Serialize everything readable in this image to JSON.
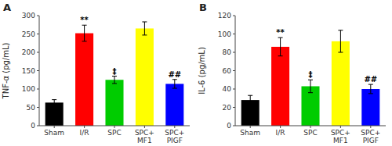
{
  "chart_data": [
    {
      "type": "bar",
      "title": "A",
      "ylabel": "TNF-α (pg/mL)",
      "categories": [
        "Sham",
        "I/R",
        "SPC",
        "SPC+\nMF1",
        "SPC+\nPIGF"
      ],
      "values": [
        63,
        252,
        125,
        265,
        114
      ],
      "errors": [
        8,
        22,
        10,
        18,
        12
      ],
      "colors": [
        "#000000",
        "#ff0000",
        "#00cc00",
        "#ffff00",
        "#0000ff"
      ],
      "ylim": [
        0,
        300
      ],
      "yticks": [
        0,
        50,
        100,
        150,
        200,
        250,
        300
      ],
      "annotations": [
        {
          "text": "**",
          "x": "I/R"
        },
        {
          "text": "‡",
          "x": "SPC"
        },
        {
          "text": "##",
          "x": "SPC+\nPIGF"
        }
      ],
      "grid": false
    },
    {
      "type": "bar",
      "title": "B",
      "ylabel": "IL-6 (pg/mL)",
      "categories": [
        "Sham",
        "I/R",
        "SPC",
        "SPC+\nMF1",
        "SPC+\nPIGF"
      ],
      "values": [
        28,
        86,
        43,
        92,
        40
      ],
      "errors": [
        5,
        10,
        7,
        12,
        5
      ],
      "colors": [
        "#000000",
        "#ff0000",
        "#00cc00",
        "#ffff00",
        "#0000ff"
      ],
      "ylim": [
        0,
        120
      ],
      "yticks": [
        0,
        20,
        40,
        60,
        80,
        100,
        120
      ],
      "annotations": [
        {
          "text": "**",
          "x": "I/R"
        },
        {
          "text": "‡",
          "x": "SPC"
        },
        {
          "text": "##",
          "x": "SPC+\nPIGF"
        }
      ],
      "grid": false
    }
  ]
}
